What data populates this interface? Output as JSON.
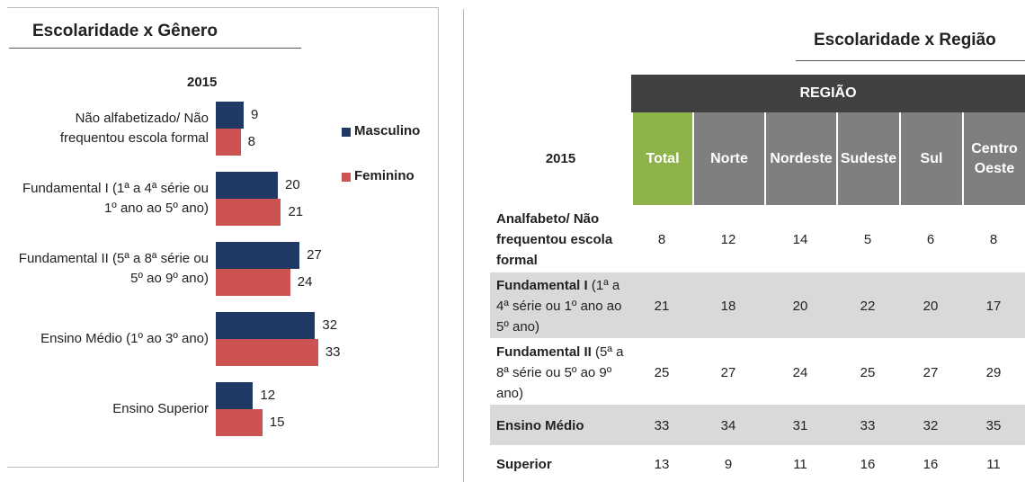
{
  "chart_data": {
    "type": "bar",
    "orientation": "horizontal",
    "title": "Escolaridade x Gênero",
    "subtitle": "2015",
    "categories": [
      "Não alfabetizado/ Não frequentou escola formal",
      "Fundamental I (1ª a 4ª série ou 1º ano ao 5º ano)",
      "Fundamental II (5ª a 8ª série ou 5º ao 9º ano)",
      "Ensino Médio (1º ao 3º ano)",
      "Ensino Superior"
    ],
    "series": [
      {
        "name": "Masculino",
        "color": "#1f3864",
        "values": [
          9,
          20,
          27,
          32,
          12
        ]
      },
      {
        "name": "Feminino",
        "color": "#cd5352",
        "values": [
          8,
          21,
          24,
          33,
          15
        ]
      }
    ],
    "legend": "right"
  },
  "table": {
    "title": "Escolaridade x Região",
    "group_header": "REGIÃO",
    "corner": "2015",
    "columns": [
      "Total",
      "Norte",
      "Nordeste",
      "Sudeste",
      "Sul",
      "Centro Oeste"
    ],
    "rows": [
      {
        "label_bold": "Analfabeto/ Não frequentou escola formal",
        "cells": [
          8,
          12,
          14,
          5,
          6,
          8
        ]
      },
      {
        "label_bold": "Fundamental I",
        "label_rest": "(1ª a 4ª série ou 1º ano ao 5º ano)",
        "cells": [
          21,
          18,
          20,
          22,
          20,
          17
        ]
      },
      {
        "label_bold": "Fundamental II",
        "label_rest": "(5ª a 8ª série ou 5º ao 9º ano)",
        "cells": [
          25,
          27,
          24,
          25,
          27,
          29
        ]
      },
      {
        "label_bold": "Ensino Médio",
        "cells": [
          33,
          34,
          31,
          33,
          32,
          35
        ]
      },
      {
        "label_bold": "Superior",
        "cells": [
          13,
          9,
          11,
          16,
          16,
          11
        ]
      }
    ]
  }
}
